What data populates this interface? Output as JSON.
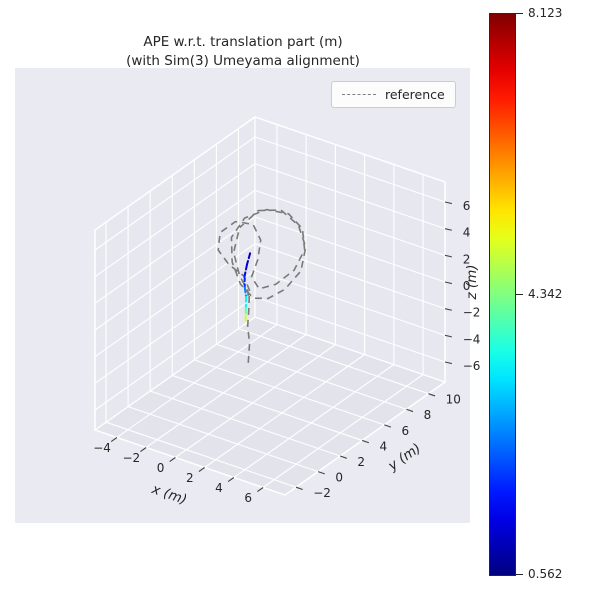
{
  "title": {
    "line1": "APE w.r.t. translation part (m)",
    "line2": "(with Sim(3) Umeyama alignment)"
  },
  "legend": {
    "items": [
      {
        "label": "reference",
        "line_style": "dashed",
        "color": "#7f7f7f"
      }
    ]
  },
  "axes": {
    "x": {
      "label": "x (m)",
      "lim": [
        -5.5,
        7.5
      ],
      "ticks": [
        -4,
        -2,
        0,
        2,
        4,
        6
      ]
    },
    "y": {
      "label": "y (m)",
      "lim": [
        -3,
        11.5
      ],
      "ticks": [
        -2,
        0,
        2,
        4,
        6,
        8,
        10
      ]
    },
    "z": {
      "label": "z (m)",
      "lim": [
        -7.5,
        7.5
      ],
      "ticks": [
        -6,
        -4,
        -2,
        0,
        2,
        4,
        6
      ]
    }
  },
  "colorbar": {
    "colormap": "jet",
    "min": 0.562,
    "mid": 4.342,
    "max": 8.123,
    "tick_labels": [
      "8.123",
      "4.342",
      "0.562"
    ]
  },
  "colors": {
    "panel_bg": "#EAEAF2",
    "pane_wall": "#E7E7F0",
    "pane_floor": "#E3E3EC",
    "grid": "#FFFFFF",
    "tick_mark": "#444444",
    "tick_text": "#262626",
    "reference_line": "#7a7a7a"
  },
  "chart_data": {
    "type": "line",
    "projection": "3d",
    "title": "APE w.r.t. translation part (m) (with Sim(3) Umeyama alignment)",
    "xlabel": "x (m)",
    "ylabel": "y (m)",
    "zlabel": "z (m)",
    "xlim": [
      -5.5,
      7.5
    ],
    "ylim": [
      -3,
      11.5
    ],
    "zlim": [
      -7.5,
      7.5
    ],
    "grid": true,
    "legend_position": "upper right",
    "color_scale": {
      "name": "jet",
      "min": 0.562,
      "max": 8.123,
      "mid": 4.342
    },
    "series": [
      {
        "name": "reference",
        "style": "dashed",
        "color": "#7a7a7a",
        "points": [
          [
            -0.3,
            4.0,
            -4.6
          ],
          [
            -0.25,
            4.05,
            -3.2
          ],
          [
            -0.3,
            3.95,
            -1.8
          ],
          [
            -0.25,
            4.0,
            -0.4
          ],
          [
            -0.3,
            4.1,
            0.8
          ],
          [
            -0.6,
            4.0,
            1.8
          ],
          [
            -1.3,
            3.6,
            2.6
          ],
          [
            -1.9,
            3.4,
            3.6
          ],
          [
            -2.0,
            3.7,
            4.7
          ],
          [
            -1.4,
            4.3,
            5.4
          ],
          [
            -0.5,
            4.7,
            5.3
          ],
          [
            0.1,
            4.6,
            4.4
          ],
          [
            0.2,
            4.2,
            3.2
          ],
          [
            0.0,
            3.9,
            2.0
          ],
          [
            0.6,
            3.8,
            1.4
          ],
          [
            1.5,
            4.1,
            1.9
          ],
          [
            2.3,
            4.7,
            2.9
          ],
          [
            2.5,
            5.4,
            4.1
          ],
          [
            1.9,
            6.0,
            5.1
          ],
          [
            0.8,
            6.2,
            5.7
          ],
          [
            -0.4,
            5.8,
            5.8
          ],
          [
            -1.3,
            5.0,
            5.3
          ],
          [
            -1.6,
            4.2,
            4.2
          ],
          [
            -1.1,
            3.6,
            2.9
          ],
          [
            -0.3,
            3.3,
            1.7
          ],
          [
            0.5,
            3.4,
            0.9
          ],
          [
            1.2,
            3.8,
            0.9
          ],
          [
            1.9,
            4.4,
            1.5
          ],
          [
            2.4,
            5.2,
            2.6
          ],
          [
            2.2,
            5.9,
            3.9
          ],
          [
            1.4,
            6.3,
            5.0
          ],
          [
            0.2,
            6.3,
            5.7
          ],
          [
            -0.9,
            5.7,
            5.6
          ],
          [
            -1.5,
            4.8,
            4.6
          ],
          [
            -1.3,
            4.0,
            3.3
          ],
          [
            -0.6,
            3.6,
            2.1
          ],
          [
            -0.1,
            3.7,
            1.0
          ],
          [
            -0.2,
            3.9,
            0.1
          ]
        ]
      },
      {
        "name": "estimate_colored_by_ape",
        "style": "dashed",
        "colormap": "jet",
        "points": [
          [
            -0.4,
            4.3,
            3.4
          ],
          [
            -0.5,
            4.15,
            2.6
          ],
          [
            -0.55,
            4.0,
            1.8
          ],
          [
            -0.5,
            3.95,
            1.0
          ],
          [
            -0.45,
            4.0,
            0.3
          ],
          [
            -0.5,
            4.05,
            -0.6
          ],
          [
            -0.55,
            4.1,
            -1.2
          ],
          [
            -0.6,
            4.15,
            -1.8
          ]
        ],
        "ape_values": [
          0.8,
          1.1,
          1.5,
          2.1,
          2.9,
          3.8,
          4.6,
          5.2
        ]
      }
    ]
  }
}
